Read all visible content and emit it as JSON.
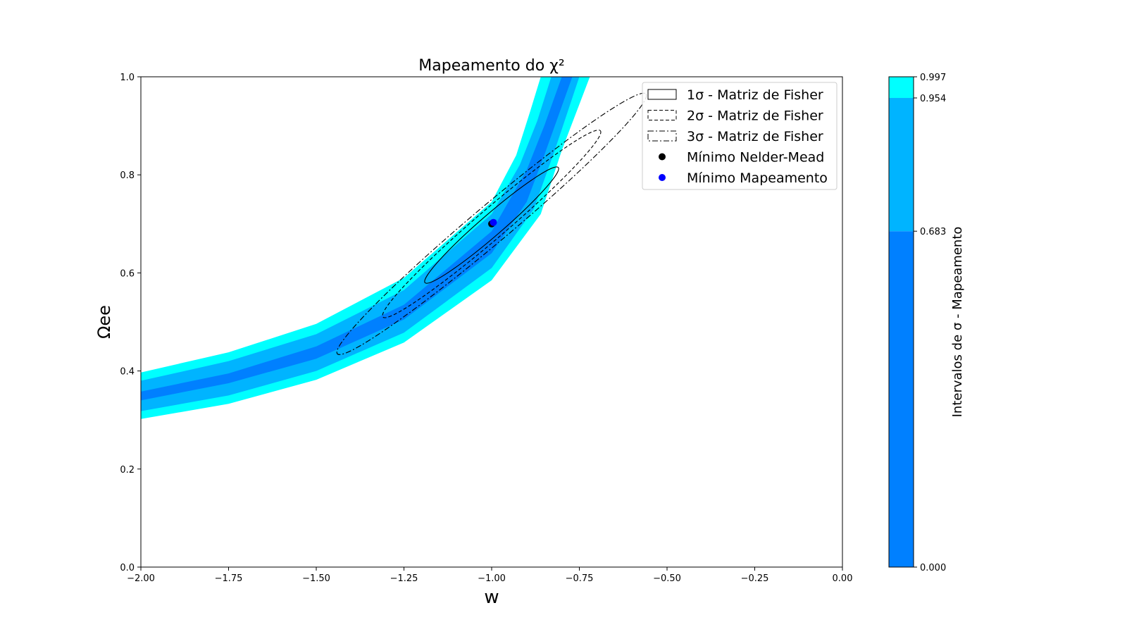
{
  "chart_data": {
    "type": "contour",
    "title": "Mapeamento do χ²",
    "xlabel": "w",
    "ylabel": "Ωee",
    "xlim": [
      -2.0,
      0.0
    ],
    "ylim": [
      0.0,
      1.0
    ],
    "xticks": [
      "−2.00",
      "−1.75",
      "−1.50",
      "−1.25",
      "−1.00",
      "−0.75",
      "−0.50",
      "−0.25",
      "0.00"
    ],
    "xtick_values": [
      -2.0,
      -1.75,
      -1.5,
      -1.25,
      -1.0,
      -0.75,
      -0.5,
      -0.25,
      0.0
    ],
    "yticks": [
      "0.0",
      "0.2",
      "0.4",
      "0.6",
      "0.8",
      "1.0"
    ],
    "ytick_values": [
      0.0,
      0.2,
      0.4,
      0.6,
      0.8,
      1.0
    ],
    "grid": false,
    "legend_position": "top-right",
    "chi2_bands": [
      {
        "level": "0.683",
        "color": "#0080ff",
        "upper": [
          [
            -2.0,
            0.358
          ],
          [
            -1.75,
            0.395
          ],
          [
            -1.5,
            0.45
          ],
          [
            -1.25,
            0.535
          ],
          [
            -1.0,
            0.685
          ],
          [
            -0.9,
            0.81
          ],
          [
            -0.85,
            0.9
          ],
          [
            -0.8,
            1.0
          ]
        ],
        "lower": [
          [
            -2.0,
            0.34
          ],
          [
            -1.75,
            0.375
          ],
          [
            -1.5,
            0.425
          ],
          [
            -1.25,
            0.505
          ],
          [
            -1.0,
            0.64
          ],
          [
            -0.9,
            0.745
          ],
          [
            -0.85,
            0.84
          ],
          [
            -0.77,
            1.0
          ]
        ]
      },
      {
        "level": "0.954",
        "color": "#00b4ff",
        "upper": [
          [
            -2.0,
            0.38
          ],
          [
            -1.75,
            0.42
          ],
          [
            -1.5,
            0.475
          ],
          [
            -1.25,
            0.565
          ],
          [
            -1.0,
            0.72
          ],
          [
            -0.92,
            0.82
          ],
          [
            -0.87,
            0.91
          ],
          [
            -0.83,
            1.0
          ]
        ],
        "lower": [
          [
            -2.0,
            0.318
          ],
          [
            -1.75,
            0.35
          ],
          [
            -1.5,
            0.4
          ],
          [
            -1.25,
            0.478
          ],
          [
            -1.0,
            0.61
          ],
          [
            -0.88,
            0.73
          ],
          [
            -0.82,
            0.85
          ],
          [
            -0.75,
            1.0
          ]
        ]
      },
      {
        "level": "0.997",
        "color": "#00ffff",
        "upper": [
          [
            -2.0,
            0.397
          ],
          [
            -1.75,
            0.438
          ],
          [
            -1.5,
            0.496
          ],
          [
            -1.25,
            0.59
          ],
          [
            -1.0,
            0.745
          ],
          [
            -0.93,
            0.84
          ],
          [
            -0.89,
            0.93
          ],
          [
            -0.86,
            1.0
          ]
        ],
        "lower": [
          [
            -2.0,
            0.302
          ],
          [
            -1.75,
            0.333
          ],
          [
            -1.5,
            0.382
          ],
          [
            -1.25,
            0.458
          ],
          [
            -1.0,
            0.585
          ],
          [
            -0.86,
            0.72
          ],
          [
            -0.8,
            0.85
          ],
          [
            -0.72,
            1.0
          ]
        ]
      }
    ],
    "fisher_ellipses": [
      {
        "label": "1σ - Matriz de Fisher",
        "center": [
          -1.0,
          0.7
        ],
        "sigma": 1,
        "style": "solid",
        "end1": [
          -1.19,
          0.58
        ],
        "end2": [
          -0.81,
          0.815
        ],
        "half_width": 0.022
      },
      {
        "label": "2σ - Matriz de Fisher",
        "center": [
          -1.0,
          0.7
        ],
        "sigma": 2,
        "style": "dashed",
        "end1": [
          -1.31,
          0.51
        ],
        "end2": [
          -0.69,
          0.89
        ],
        "half_width": 0.03
      },
      {
        "label": "3σ - Matriz de Fisher",
        "center": [
          -1.0,
          0.7
        ],
        "sigma": 3,
        "style": "dashdot",
        "end1": [
          -1.44,
          0.435
        ],
        "end2": [
          -0.56,
          0.965
        ],
        "half_width": 0.038
      }
    ],
    "points": [
      {
        "label": "Mínimo Nelder-Mead",
        "x": -1.0,
        "y": 0.7,
        "color": "#000000"
      },
      {
        "label": "Mínimo Mapeamento",
        "x": -0.995,
        "y": 0.703,
        "color": "#0000ff"
      }
    ],
    "colorbar": {
      "label": "Intervalos de σ - Mapeamento",
      "ticks": [
        "0.000",
        "0.683",
        "0.954",
        "0.997"
      ],
      "tick_values": [
        0.0,
        0.683,
        0.954,
        0.997
      ],
      "colors": [
        "#0080ff",
        "#00b4ff",
        "#00ffff"
      ]
    }
  }
}
